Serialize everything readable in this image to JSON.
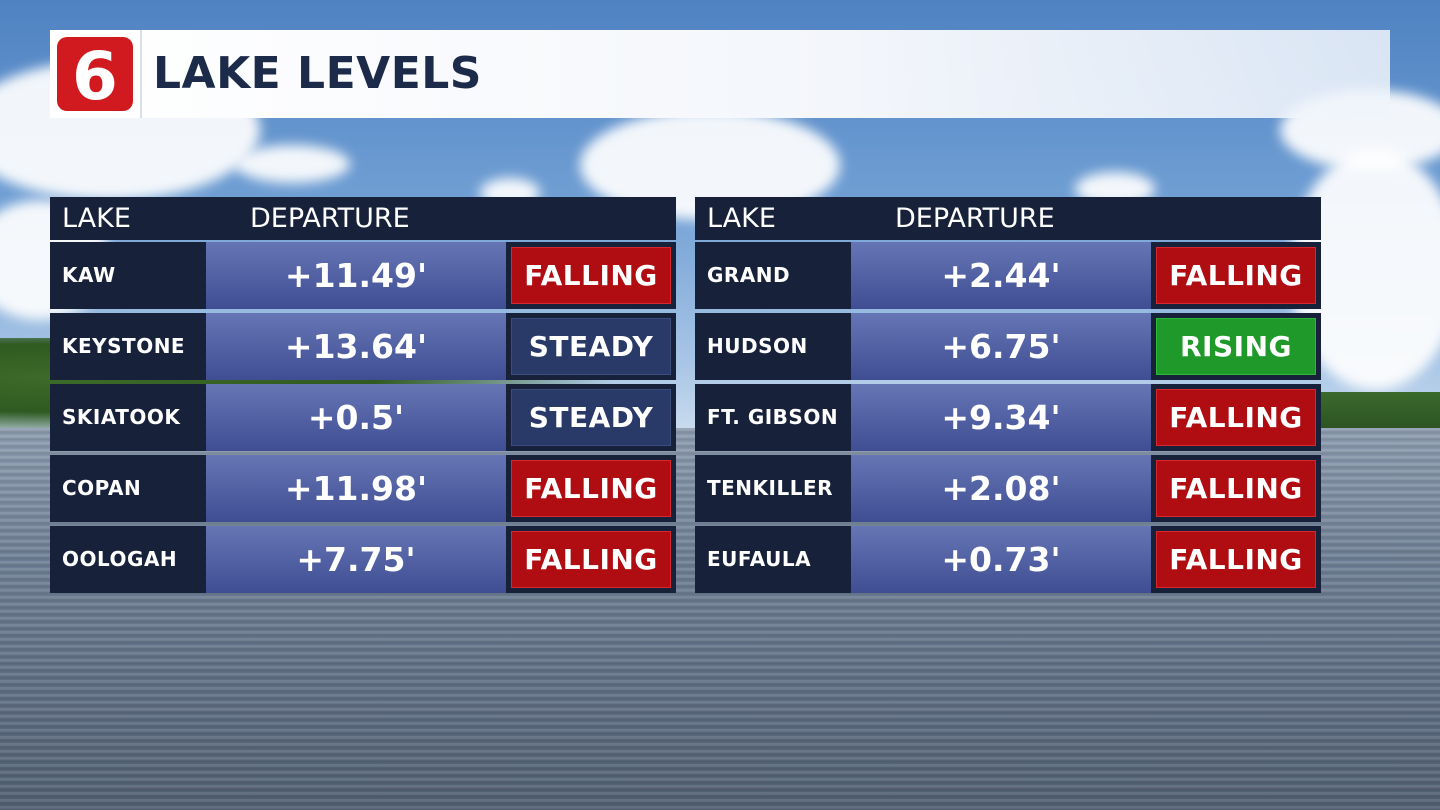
{
  "header": {
    "title": "LAKE LEVELS",
    "logo_text": "6"
  },
  "columns": {
    "lake": "LAKE",
    "departure": "DEPARTURE"
  },
  "left_table": [
    {
      "lake": "KAW",
      "departure": "+11.49'",
      "trend": "FALLING",
      "status": "falling"
    },
    {
      "lake": "KEYSTONE",
      "departure": "+13.64'",
      "trend": "STEADY",
      "status": "steady"
    },
    {
      "lake": "SKIATOOK",
      "departure": "+0.5'",
      "trend": "STEADY",
      "status": "steady"
    },
    {
      "lake": "COPAN",
      "departure": "+11.98'",
      "trend": "FALLING",
      "status": "falling"
    },
    {
      "lake": "OOLOGAH",
      "departure": "+7.75'",
      "trend": "FALLING",
      "status": "falling"
    }
  ],
  "right_table": [
    {
      "lake": "GRAND",
      "departure": "+2.44'",
      "trend": "FALLING",
      "status": "falling"
    },
    {
      "lake": "HUDSON",
      "departure": "+6.75'",
      "trend": "RISING",
      "status": "rising"
    },
    {
      "lake": "FT. GIBSON",
      "departure": "+9.34'",
      "trend": "FALLING",
      "status": "falling"
    },
    {
      "lake": "TENKILLER",
      "departure": "+2.08'",
      "trend": "FALLING",
      "status": "falling"
    },
    {
      "lake": "EUFAULA",
      "departure": "+0.73'",
      "trend": "FALLING",
      "status": "falling"
    }
  ],
  "colors": {
    "falling": "#b00d12",
    "steady": "#2a3a68",
    "rising": "#1f9a2a",
    "brand_red": "#d11a1f",
    "title": "#1c2b4a"
  }
}
